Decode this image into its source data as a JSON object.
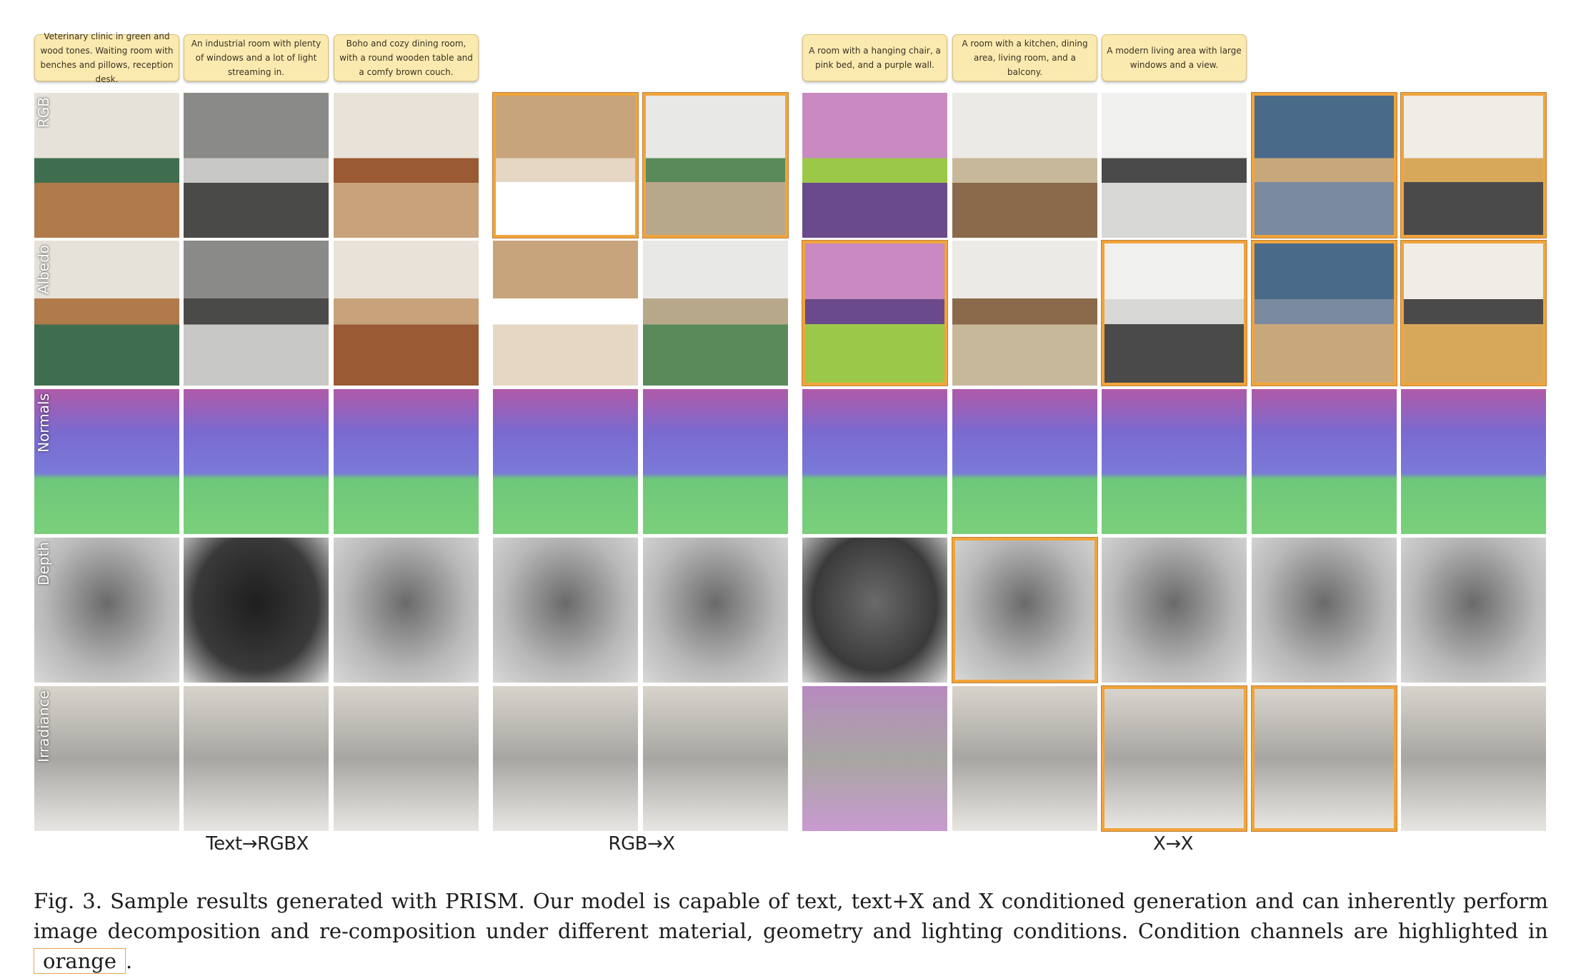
{
  "prompts": [
    "Veterinary clinic in green and wood tones. Waiting room with benches and pillows, reception desk.",
    "An industrial room with plenty of windows and a lot of light streaming in.",
    "Boho and cozy dining room, with a round wooden table and a comfy brown couch.",
    "A room with a hanging chair, a pink bed, and a purple wall.",
    "A room with a kitchen, dining area, living room, and a balcony.",
    "A modern living area with large windows and a view."
  ],
  "row_labels": [
    "RGB",
    "Albedo",
    "Normals",
    "Depth",
    "Irradiance"
  ],
  "group_labels": [
    "Text→RGBX",
    "RGB→X",
    "X→X"
  ],
  "highlight_color": "#f0a43a",
  "highlighted_tiles": [
    "rgb-2x-scene1-rgb",
    "rgb-2x-scene2-rgb",
    "x-2x-scene1-albedo",
    "x-2x-scene2-depth",
    "x-2x-scene3-albedo",
    "x-2x-scene3-irradiance",
    "x-2x-scene4-rgb",
    "x-2x-scene4-albedo",
    "x-2x-scene4-irradiance",
    "x-2x-scene5-rgb",
    "x-2x-scene5-albedo"
  ],
  "caption": {
    "text": "Fig. 3. Sample results generated with PRISM. Our model is capable of text, text+X and X conditioned generation and can inherently perform image decomposition and re-composition under different material, geometry and lighting conditions. Condition channels are highlighted in",
    "highlight_word": "orange",
    "end": "."
  }
}
